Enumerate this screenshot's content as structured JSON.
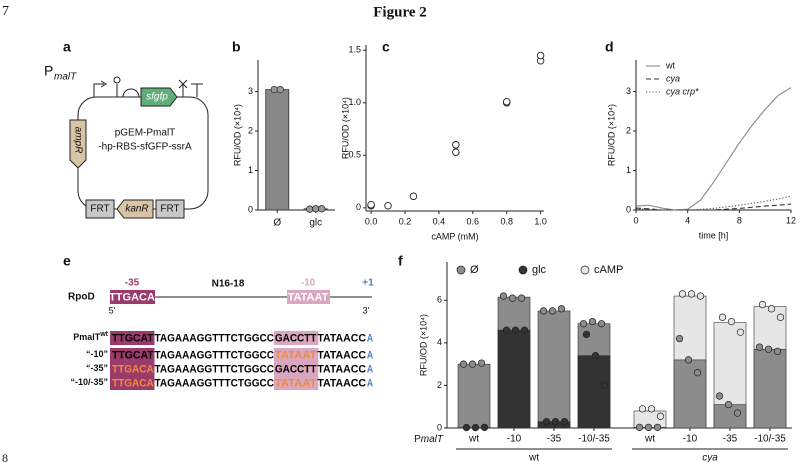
{
  "page_number": "7",
  "figure_title": "Figure 2",
  "next_page_number": "8",
  "panel_a": {
    "label": "a",
    "promoter": "P",
    "promoter_sub": "malT",
    "gene": "sfgfp",
    "resistance": "ampR",
    "plasmid_name": [
      "pGEM-PmalT",
      "-hp-RBS-sfGFP-ssrA"
    ],
    "cassette": [
      "FRT",
      "kanR",
      "FRT"
    ]
  },
  "panel_e": {
    "label": "e",
    "consensus": {
      "name": "RpoD",
      "minus35_label": "-35",
      "minus35": "TTGACA",
      "spacer": "N16-18",
      "minus10_label": "-10",
      "minus10": "TATAAT",
      "tss_label": "+1",
      "five_prime": "5'",
      "three_prime": "3'"
    },
    "rows": [
      {
        "label": "PmalT",
        "label_sup": "wt",
        "box35": "TTGCAT",
        "mid": "TAGAAAGGTTTCTGGCC",
        "box10": "GACCTT",
        "tail": "TATAACC",
        "tss": "A",
        "mut35": false,
        "mut10": false
      },
      {
        "label": "“-10”",
        "box35": "TTGCAT",
        "mid": "TAGAAAGGTTTCTGGCC",
        "box10": "TATAAT",
        "tail": "TATAACC",
        "tss": "A",
        "mut35": false,
        "mut10": true
      },
      {
        "label": "“-35”",
        "box35": "TTGACA",
        "mid": "TAGAAAGGTTTCTGGCC",
        "box10": "GACCTT",
        "tail": "TATAACC",
        "tss": "A",
        "mut35": true,
        "mut10": false
      },
      {
        "label": "“-10/-35”",
        "box35": "TTGACA",
        "mid": "TAGAAAGGTTTCTGGCC",
        "box10": "TATAAT",
        "tail": "TATAACC",
        "tss": "A",
        "mut35": true,
        "mut10": true
      }
    ]
  },
  "chart_data": [
    {
      "type": "bar",
      "label": "b",
      "categories": [
        "Ø",
        "glc"
      ],
      "values": [
        3.05,
        0.03
      ],
      "color": "#888888",
      "replicates": [
        [
          3.05,
          3.05
        ],
        [
          0.02,
          0.03,
          0.03
        ]
      ],
      "y_label": "RFU/OD  (×10⁴)",
      "ylim": [
        0,
        3.8
      ],
      "yticks": [
        0,
        1,
        2,
        3
      ]
    },
    {
      "type": "scatter",
      "label": "c",
      "x": [
        0,
        0,
        0.1,
        0.25,
        0.5,
        0.5,
        0.8,
        0.8,
        1.0,
        1.0
      ],
      "values": [
        0.02,
        0.03,
        0.02,
        0.11,
        0.53,
        0.6,
        1.0,
        1.01,
        1.4,
        1.45
      ],
      "x_label": "cAMP (mM)",
      "y_label": "RFU/OD  (×10⁴)",
      "xlim": [
        -0.03,
        1.02
      ],
      "xticks": [
        {
          "value": 0,
          "label": "0.0"
        },
        0.2,
        0.4,
        0.6,
        0.8,
        {
          "value": 1,
          "label": "1.0"
        }
      ],
      "ylim": [
        -0.03,
        1.55
      ],
      "yticks": [
        0,
        0.5,
        {
          "value": 1,
          "label": "1.0"
        },
        1.5
      ]
    },
    {
      "type": "line",
      "label": "d",
      "x": [
        0,
        1,
        2,
        3,
        4,
        5,
        6,
        7,
        8,
        9,
        10,
        11,
        12
      ],
      "series": [
        {
          "name": "wt",
          "color": "#888888",
          "dash": "solid",
          "values": [
            0.1,
            0.12,
            0.05,
            0.0,
            0.02,
            0.25,
            0.7,
            1.2,
            1.7,
            2.15,
            2.55,
            2.9,
            3.1
          ]
        },
        {
          "name": "cya",
          "color": "#333333",
          "dash": "dashed",
          "italic": true,
          "values": [
            0.05,
            0.03,
            0,
            0,
            0,
            0,
            0,
            0.02,
            0.04,
            0.07,
            0.1,
            0.12,
            0.15
          ]
        },
        {
          "name": "cya crp*",
          "color": "#555555",
          "dash": "dotted",
          "italic": true,
          "values": [
            0.03,
            0.02,
            0,
            0,
            0,
            0.02,
            0.04,
            0.08,
            0.12,
            0.17,
            0.22,
            0.28,
            0.35
          ]
        }
      ],
      "x_label": "time [h]",
      "y_label": "RFU/OD  (×10⁴)",
      "legend": "top-left",
      "xlim": [
        0,
        12
      ],
      "xticks": [
        0,
        4,
        8,
        12
      ],
      "ylim": [
        0,
        3.8
      ],
      "yticks": [
        0,
        1,
        2,
        3
      ]
    },
    {
      "type": "bar",
      "label": "f",
      "categories": [
        "wt",
        "-10",
        "-35",
        "-10/-35",
        "wt",
        "-10",
        "-35",
        "-10/-35"
      ],
      "groups": [
        "wt",
        "cya"
      ],
      "x_label_prefix": "P",
      "x_label_italic": "malT",
      "series": [
        {
          "name": "Ø",
          "color": "#8c8c8c",
          "values": [
            3.0,
            6.15,
            5.5,
            4.9,
            0.03,
            3.2,
            1.1,
            3.7
          ],
          "replicates": [
            [
              3.0,
              3.0,
              3.05
            ],
            [
              6.2,
              6.1,
              6.1
            ],
            [
              5.5,
              5.5,
              5.6
            ],
            [
              4.9,
              5.0,
              4.9
            ],
            [
              0.03,
              0.03,
              0.03
            ],
            [
              4.2,
              3.2,
              2.6
            ],
            [
              1.5,
              1.1,
              0.7
            ],
            [
              3.8,
              3.7,
              3.6
            ]
          ]
        },
        {
          "name": "glc",
          "color": "#333333",
          "values": [
            0.02,
            4.6,
            0.3,
            3.4,
            null,
            null,
            null,
            null
          ],
          "replicates": [
            [
              0.02,
              0.02,
              0.03
            ],
            [
              4.6,
              4.6,
              4.6
            ],
            [
              0.3,
              0.3,
              0.3
            ],
            [
              4.4,
              3.4,
              2.0
            ],
            null,
            null,
            null,
            null
          ]
        },
        {
          "name": "cAMP",
          "color": "#e6e6e6",
          "values": [
            null,
            null,
            null,
            null,
            0.8,
            6.2,
            4.95,
            5.7
          ],
          "replicates": [
            null,
            null,
            null,
            null,
            [
              0.9,
              0.9,
              0.55
            ],
            [
              6.3,
              6.3,
              6.2
            ],
            [
              5.2,
              5.0,
              4.5
            ],
            [
              5.8,
              5.6,
              5.2
            ]
          ]
        }
      ],
      "y_label": "RFU/OD  (×10⁴)",
      "legend": "top",
      "ylim": [
        0,
        7.8
      ],
      "yticks": [
        0,
        2,
        4,
        6
      ]
    }
  ]
}
